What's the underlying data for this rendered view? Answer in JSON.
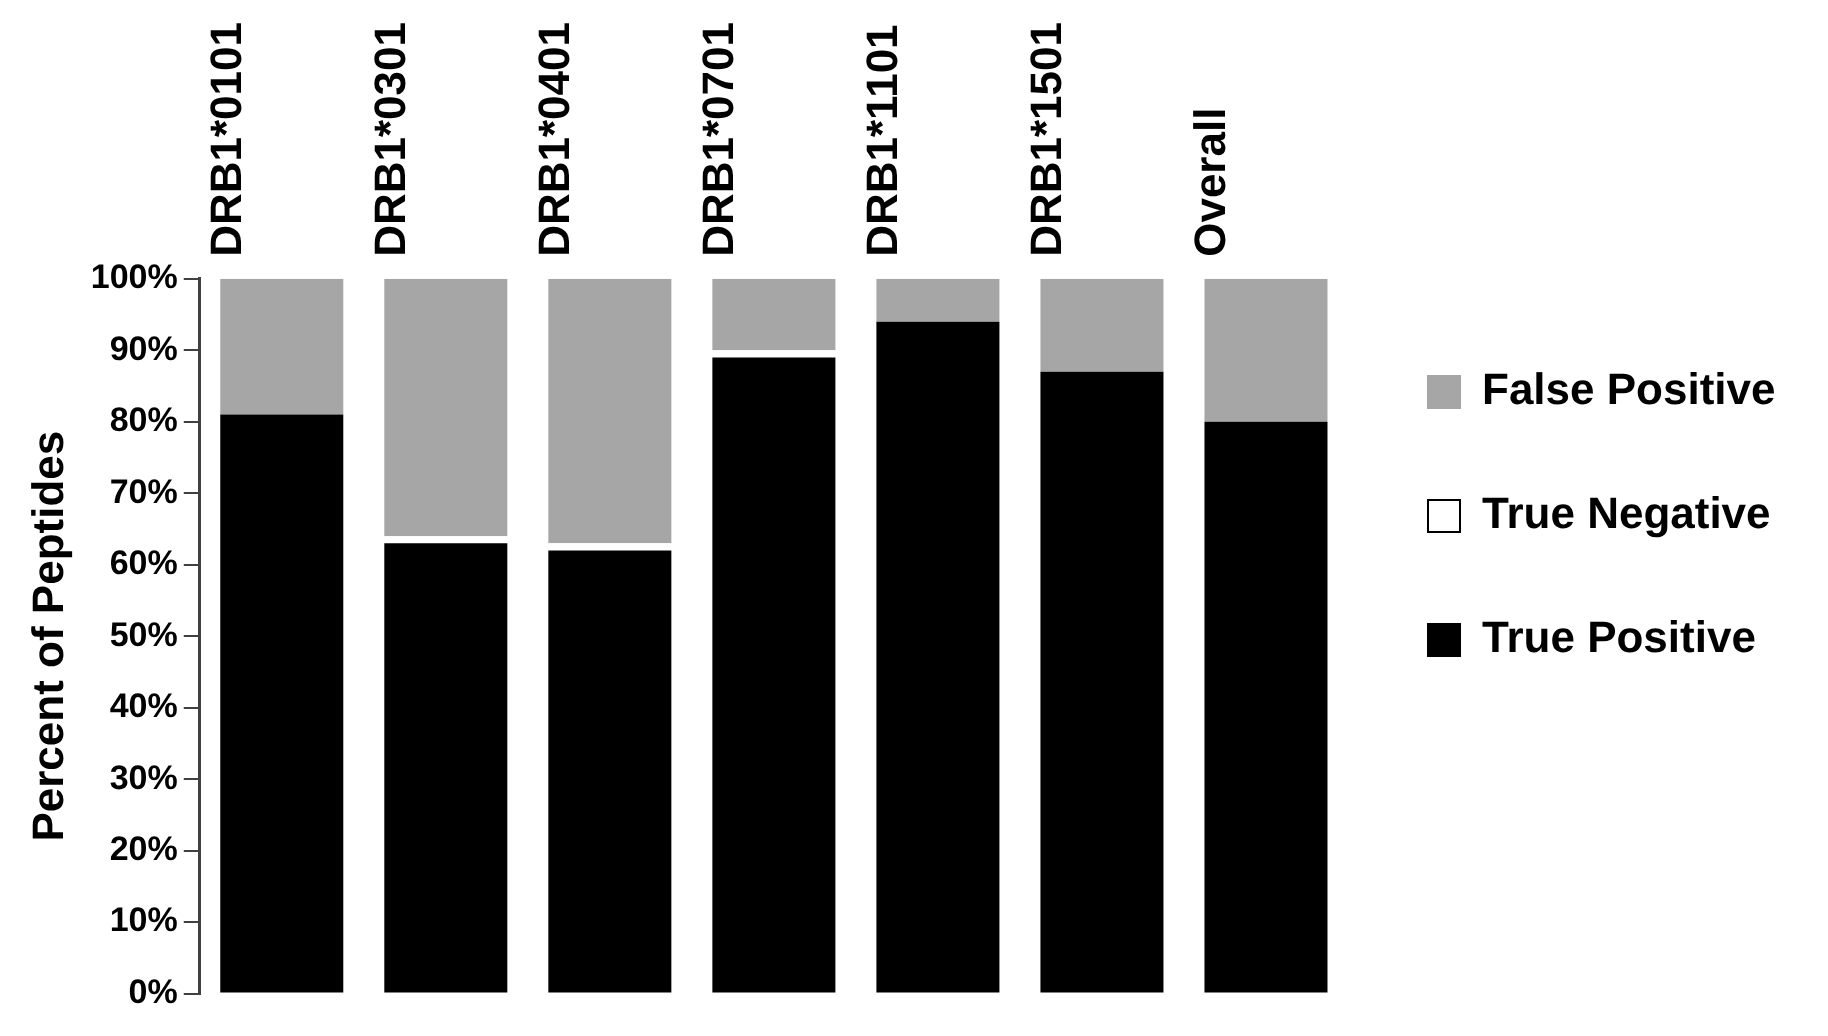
{
  "chart_data": {
    "type": "bar",
    "stacked": true,
    "ylabel": "Percent of Peptides",
    "categories": [
      "DRB1*0101",
      "DRB1*0301",
      "DRB1*0401",
      "DRB1*0701",
      "DRB1*1101",
      "DRB1*1501",
      "Overall"
    ],
    "series": [
      {
        "name": "True Positive",
        "color": "#000000",
        "values": [
          81,
          63,
          62,
          89,
          94,
          87,
          80
        ]
      },
      {
        "name": "True Negative",
        "color": "#ffffff",
        "values": [
          0,
          1,
          1,
          1,
          0,
          0,
          0
        ]
      },
      {
        "name": "False Positive",
        "color": "#a6a6a6",
        "values": [
          19,
          36,
          37,
          10,
          6,
          13,
          20
        ]
      }
    ],
    "ylim": [
      0,
      100
    ],
    "yticks": [
      {
        "value": 0,
        "label": "0%"
      },
      {
        "value": 10,
        "label": "10%"
      },
      {
        "value": 20,
        "label": "20%"
      },
      {
        "value": 30,
        "label": "30%"
      },
      {
        "value": 40,
        "label": "40%"
      },
      {
        "value": 50,
        "label": "50%"
      },
      {
        "value": 60,
        "label": "60%"
      },
      {
        "value": 70,
        "label": "70%"
      },
      {
        "value": 80,
        "label": "80%"
      },
      {
        "value": 90,
        "label": "90%"
      },
      {
        "value": 100,
        "label": "100%"
      }
    ],
    "grid": false,
    "legend": "right"
  }
}
